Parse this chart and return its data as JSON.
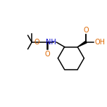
{
  "bg_color": "#ffffff",
  "bond_color": "#000000",
  "O_color": "#dd6600",
  "N_color": "#0000cc",
  "line_width": 1.1,
  "figsize": [
    1.52,
    1.52
  ],
  "dpi": 100,
  "xlim": [
    0,
    10
  ],
  "ylim": [
    2.5,
    8.0
  ]
}
